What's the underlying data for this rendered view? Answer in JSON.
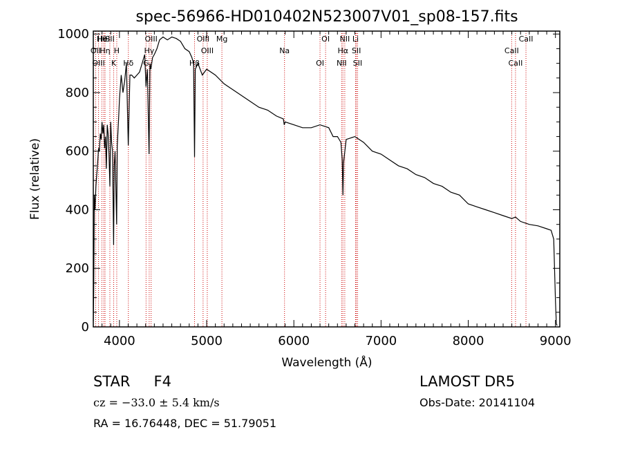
{
  "chart_data": {
    "type": "line",
    "title": "spec-56966-HD010402N523007V01_sp08-157.fits",
    "xlabel": "Wavelength (Å)",
    "ylabel": "Flux (relative)",
    "xlim": [
      3700,
      9050
    ],
    "ylim": [
      0,
      1010
    ],
    "xticks": [
      4000,
      5000,
      6000,
      7000,
      8000,
      9000
    ],
    "yticks": [
      0,
      200,
      400,
      600,
      800,
      1000
    ],
    "grid": false,
    "colors": {
      "line": "#000000",
      "markers": "#cc0000"
    },
    "series": [
      {
        "x": [
          3700,
          3705,
          3712,
          3720,
          3730,
          3740,
          3750,
          3760,
          3770,
          3780,
          3790,
          3800,
          3810,
          3820,
          3830,
          3840,
          3850,
          3860,
          3870,
          3880,
          3890,
          3900,
          3910,
          3920,
          3933,
          3940,
          3950,
          3960,
          3968,
          3975,
          3990,
          4000,
          4020,
          4040,
          4060,
          4080,
          4101,
          4120,
          4140,
          4170,
          4200,
          4230,
          4260,
          4290,
          4305,
          4320,
          4340,
          4350,
          4360,
          4380,
          4400,
          4430,
          4460,
          4500,
          4550,
          4600,
          4650,
          4700,
          4750,
          4800,
          4830,
          4850,
          4861,
          4870,
          4900,
          4950,
          5000,
          5100,
          5200,
          5300,
          5400,
          5500,
          5600,
          5700,
          5800,
          5880,
          5890,
          5900,
          6000,
          6100,
          6200,
          6300,
          6400,
          6450,
          6500,
          6540,
          6555,
          6563,
          6570,
          6585,
          6600,
          6650,
          6700,
          6800,
          6900,
          7000,
          7100,
          7200,
          7300,
          7400,
          7500,
          7600,
          7700,
          7800,
          7900,
          8000,
          8100,
          8200,
          8300,
          8400,
          8500,
          8542,
          8600,
          8700,
          8800,
          8900,
          8950,
          8980,
          9000,
          9010,
          9020
        ],
        "values": [
          20,
          120,
          450,
          400,
          480,
          520,
          560,
          610,
          600,
          660,
          640,
          700,
          660,
          690,
          610,
          650,
          540,
          690,
          660,
          590,
          480,
          700,
          630,
          600,
          280,
          550,
          600,
          460,
          350,
          620,
          710,
          780,
          860,
          800,
          840,
          900,
          620,
          860,
          860,
          850,
          860,
          870,
          900,
          930,
          820,
          880,
          590,
          900,
          880,
          920,
          930,
          950,
          980,
          990,
          980,
          990,
          985,
          975,
          950,
          940,
          920,
          900,
          580,
          880,
          900,
          860,
          880,
          860,
          830,
          810,
          790,
          770,
          750,
          740,
          720,
          710,
          690,
          700,
          690,
          680,
          680,
          690,
          680,
          650,
          650,
          630,
          570,
          450,
          560,
          600,
          640,
          645,
          650,
          630,
          600,
          590,
          570,
          550,
          540,
          520,
          510,
          490,
          480,
          460,
          450,
          420,
          410,
          400,
          390,
          380,
          370,
          375,
          360,
          350,
          345,
          335,
          330,
          300,
          90,
          10,
          5
        ]
      }
    ],
    "line_markers": [
      {
        "name": "Hθ",
        "x": 3798
      },
      {
        "name": "OII",
        "x": 3727
      },
      {
        "name": "OIII",
        "x": 3760
      },
      {
        "name": "HeI",
        "x": 3820
      },
      {
        "name": "Hη",
        "x": 3835
      },
      {
        "name": "K",
        "x": 3934
      },
      {
        "name": "SII",
        "x": 3890
      },
      {
        "name": "H",
        "x": 3969
      },
      {
        "name": "Hδ",
        "x": 4102
      },
      {
        "name": "OIII",
        "x": 4363
      },
      {
        "name": "Hγ",
        "x": 4341
      },
      {
        "name": "G",
        "x": 4305
      },
      {
        "name": "OIII",
        "x": 4959
      },
      {
        "name": "OIII",
        "x": 5007
      },
      {
        "name": "Hβ",
        "x": 4861
      },
      {
        "name": "Mg",
        "x": 5175
      },
      {
        "name": "Na",
        "x": 5893
      },
      {
        "name": "OI",
        "x": 6300
      },
      {
        "name": "OI",
        "x": 6364
      },
      {
        "name": "Hα",
        "x": 6563
      },
      {
        "name": "NII",
        "x": 6548
      },
      {
        "name": "NII",
        "x": 6584
      },
      {
        "name": "SII",
        "x": 6717
      },
      {
        "name": "SII",
        "x": 6731
      },
      {
        "name": "Li",
        "x": 6708
      },
      {
        "name": "CaII",
        "x": 8498
      },
      {
        "name": "CaII",
        "x": 8542
      },
      {
        "name": "CaII",
        "x": 8662
      }
    ]
  },
  "info": {
    "class": "STAR",
    "subclass": "F4",
    "survey": "LAMOST DR5",
    "cz": "cz = −33.0 ± 5.4 km/s",
    "obs_date": "Obs-Date: 20141104",
    "coords": "RA =  16.76448, DEC =  51.79051"
  }
}
